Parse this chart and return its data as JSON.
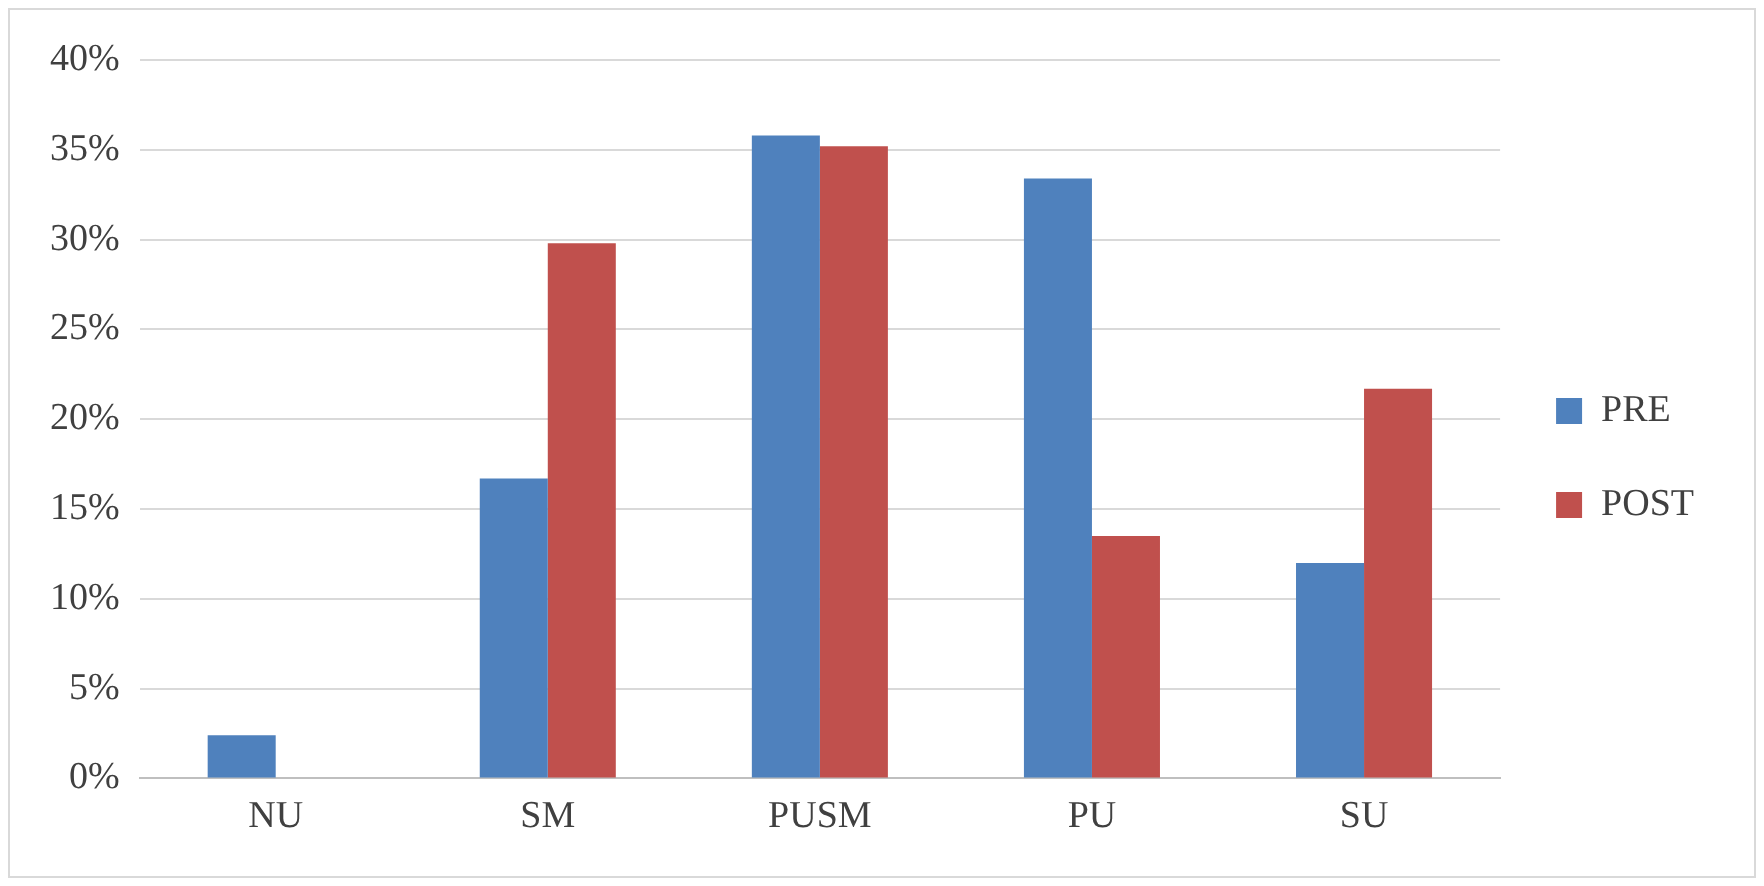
{
  "chart_data": {
    "type": "bar",
    "categories": [
      "NU",
      "SM",
      "PUSM",
      "PU",
      "SU"
    ],
    "series": [
      {
        "name": "PRE",
        "color": "#4f81bd",
        "values": [
          2.4,
          16.7,
          35.8,
          33.4,
          12.0
        ]
      },
      {
        "name": "POST",
        "color": "#c0504d",
        "values": [
          0,
          29.8,
          35.2,
          13.5,
          21.7
        ]
      }
    ],
    "ylim": [
      0,
      40
    ],
    "yticks": [
      {
        "value": 0,
        "label": "0%"
      },
      {
        "value": 5,
        "label": "5%"
      },
      {
        "value": 10,
        "label": "10%"
      },
      {
        "value": 15,
        "label": "15%"
      },
      {
        "value": 20,
        "label": "20%"
      },
      {
        "value": 25,
        "label": "25%"
      },
      {
        "value": 30,
        "label": "30%"
      },
      {
        "value": 35,
        "label": "35%"
      },
      {
        "value": 40,
        "label": "40%"
      }
    ],
    "grid": "y",
    "legend": "right"
  }
}
